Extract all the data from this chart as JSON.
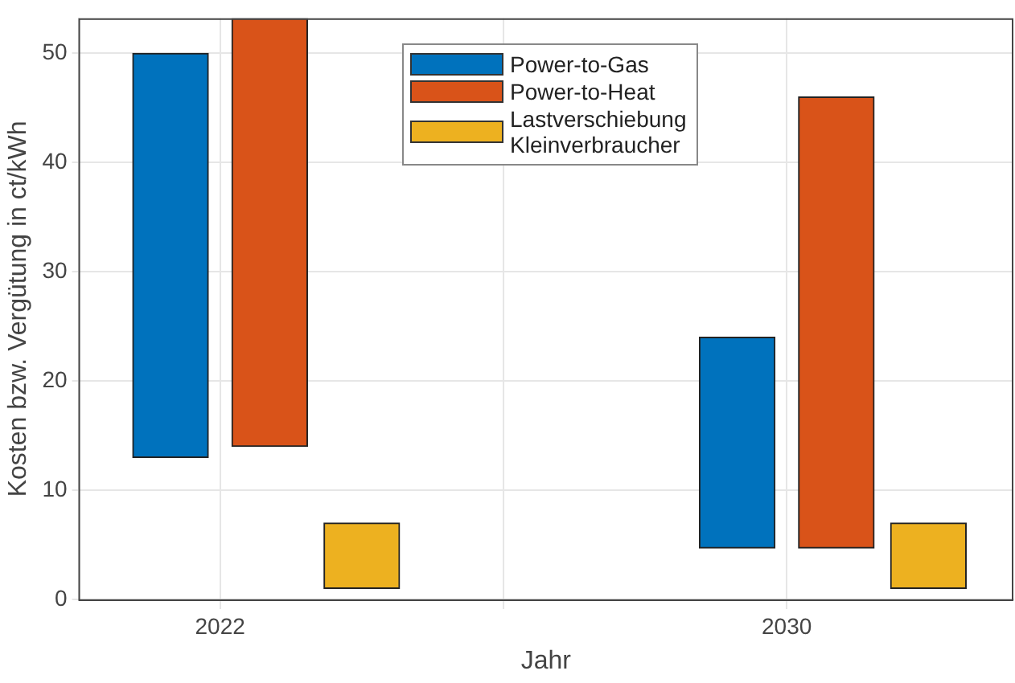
{
  "chart_data": {
    "type": "bar",
    "xlabel": "Jahr",
    "ylabel": "Kosten bzw. Vergütung in ct/kWh",
    "xlim": [
      2020,
      2033.2
    ],
    "xticks": [
      2022,
      {
        "value": 2026,
        "label": null
      },
      2030
    ],
    "ylim": [
      0,
      53.2
    ],
    "yticks": [
      0,
      10,
      20,
      30,
      40,
      50
    ],
    "grid": true,
    "legend": "top",
    "series": [
      {
        "name": "Power-to-Gas",
        "color": "#0072bd",
        "x": [
          2021.3,
          2029.3
        ],
        "base": [
          13,
          4.7
        ],
        "values": [
          37,
          19.3
        ]
      },
      {
        "name": "Power-to-Heat",
        "color": "#d95319",
        "x": [
          2022.7,
          2030.7
        ],
        "base": [
          14,
          4.7
        ],
        "values": [
          39.2,
          41.3
        ]
      },
      {
        "name": "Lastverschiebung\nKleinverbraucher",
        "color": "#edb120",
        "x": [
          2024,
          2032
        ],
        "base": [
          1,
          1
        ],
        "values": [
          6,
          6
        ]
      }
    ]
  }
}
